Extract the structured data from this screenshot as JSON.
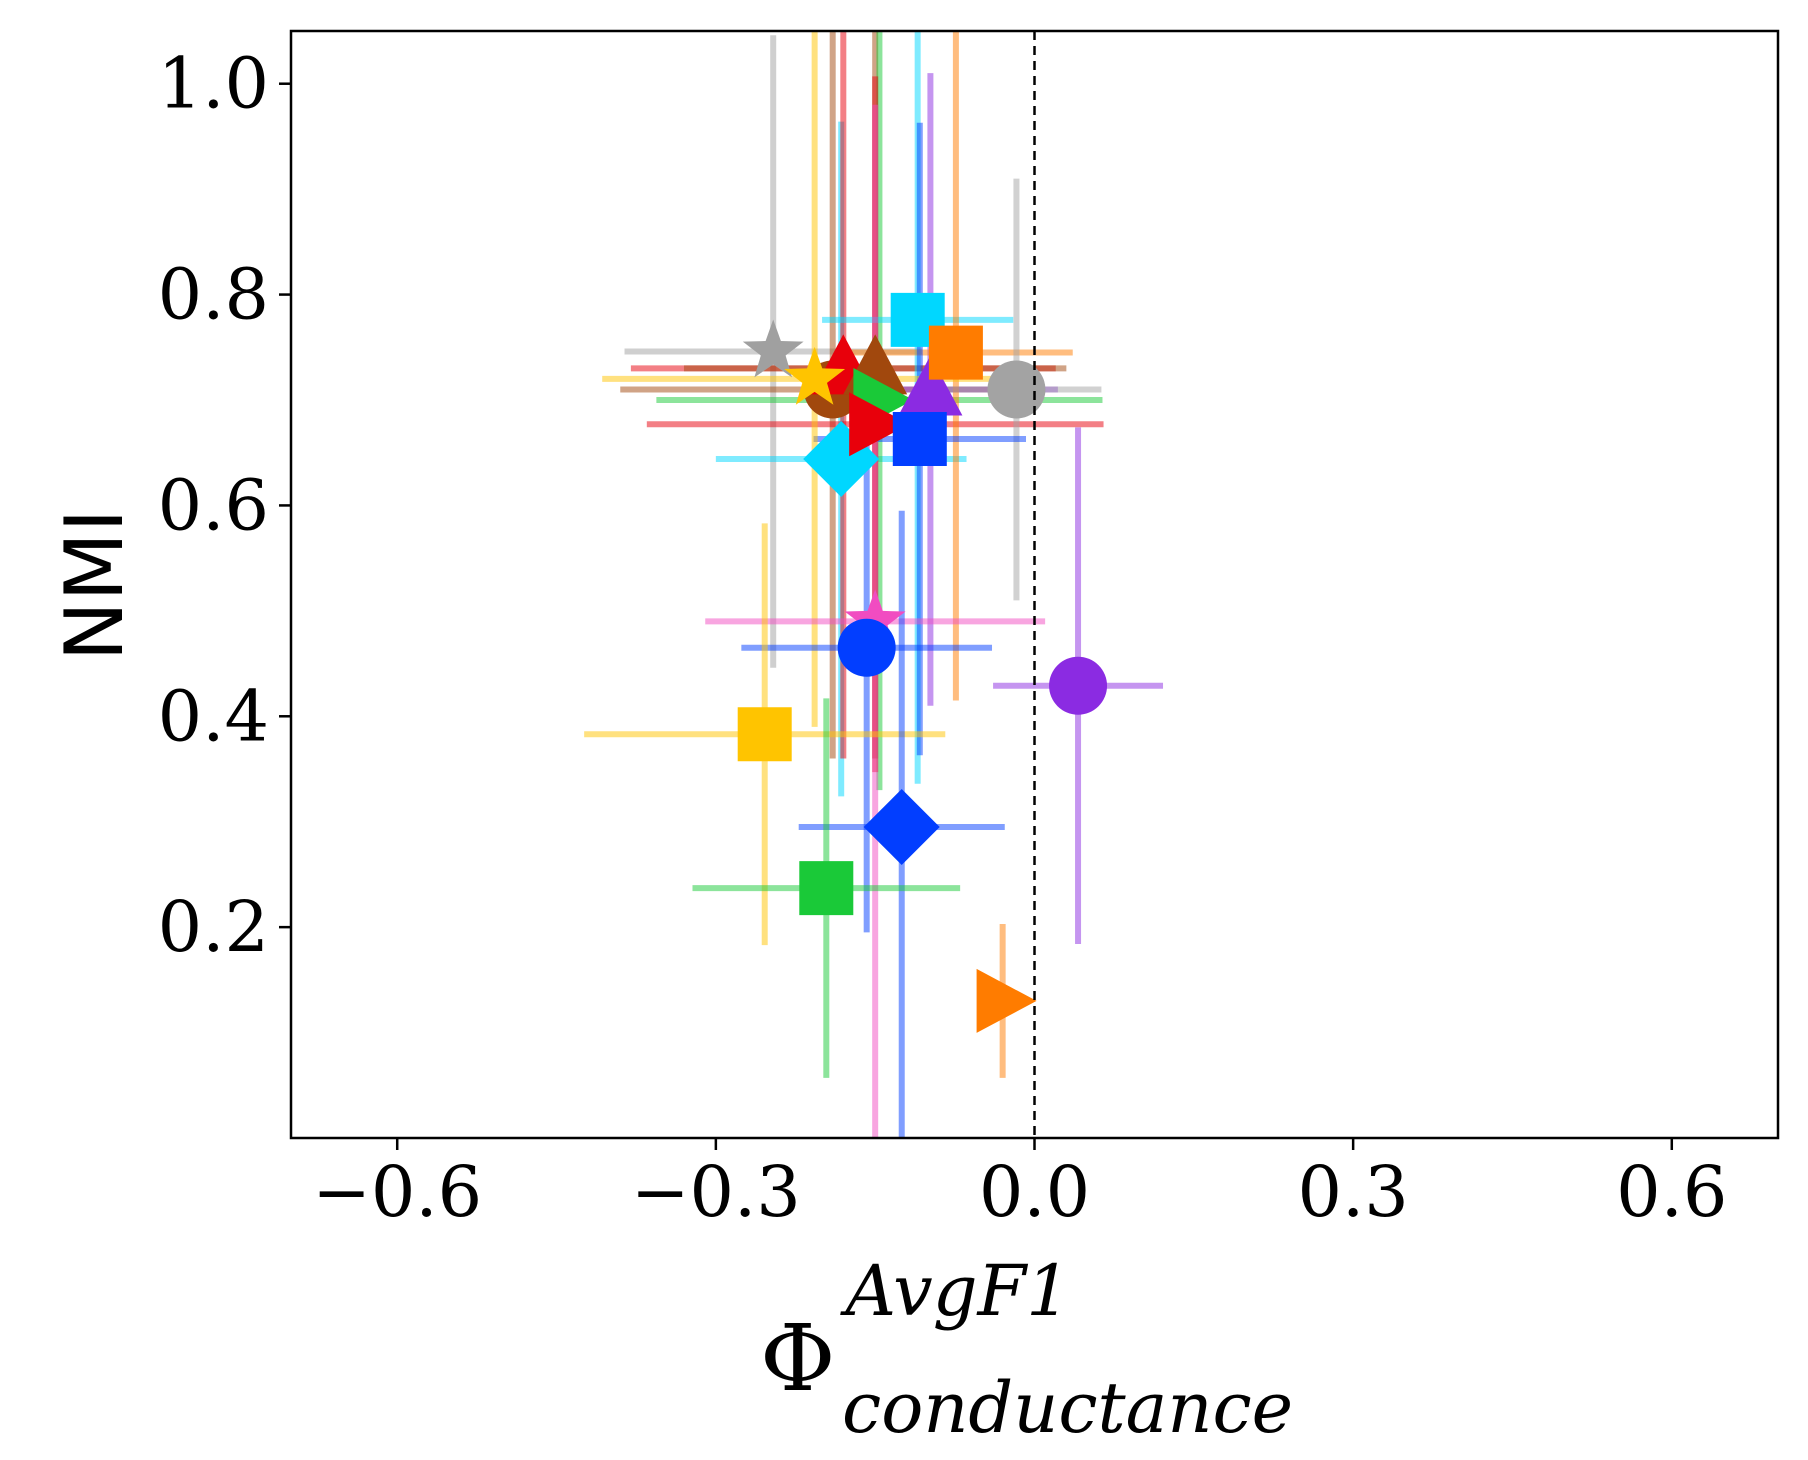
{
  "chart_data": {
    "type": "scatter",
    "xlabel": {
      "base": "Φ",
      "sup": "AvgF1",
      "sub": "conductance"
    },
    "ylabel": "NMI",
    "xlim": [
      -0.7,
      0.7
    ],
    "ylim": [
      0,
      1.05
    ],
    "xticks": [
      {
        "value": -0.6,
        "label": "−0.6"
      },
      {
        "value": -0.3,
        "label": "−0.3"
      },
      {
        "value": 0,
        "label": "0.0"
      },
      {
        "value": 0.3,
        "label": "0.3"
      },
      {
        "value": 0.6,
        "label": "0.6"
      }
    ],
    "yticks": [
      {
        "value": 0.2,
        "label": "0.2"
      },
      {
        "value": 0.4,
        "label": "0.4"
      },
      {
        "value": 0.6,
        "label": "0.6"
      },
      {
        "value": 0.8,
        "label": "0.8"
      },
      {
        "value": 1.0,
        "label": "1.0"
      }
    ],
    "vline": 0,
    "points": [
      {
        "marker": "star",
        "color": "#a0a0a0",
        "x": -0.246,
        "y": 0.746,
        "xerr": 0.14,
        "yerr": 0.3
      },
      {
        "marker": "diamond",
        "color": "#00d7ff",
        "x": -0.182,
        "y": 0.644,
        "xerr": 0.118,
        "yerr": 0.32
      },
      {
        "marker": "circle",
        "color": "#a1480d",
        "x": -0.19,
        "y": 0.71,
        "xerr": 0.2,
        "yerr": 0.35
      },
      {
        "marker": "triangle-up",
        "color": "#e8000b",
        "x": -0.18,
        "y": 0.73,
        "xerr": 0.2,
        "yerr": 0.37
      },
      {
        "marker": "triangle-up",
        "color": "#a1480d",
        "x": -0.15,
        "y": 0.73,
        "xerr": 0.18,
        "yerr": 0.37
      },
      {
        "marker": "triangle-right",
        "color": "#1ac938",
        "x": -0.146,
        "y": 0.7,
        "xerr": 0.21,
        "yerr": 0.37
      },
      {
        "marker": "triangle-right",
        "color": "#e8000b",
        "x": -0.15,
        "y": 0.677,
        "xerr": 0.215,
        "yerr": 0.33
      },
      {
        "marker": "triangle-up",
        "color": "#8b2be2",
        "x": -0.098,
        "y": 0.71,
        "xerr": 0.12,
        "yerr": 0.3
      },
      {
        "marker": "square",
        "color": "#00d7ff",
        "x": -0.11,
        "y": 0.776,
        "xerr": 0.09,
        "yerr": 0.44
      },
      {
        "marker": "square",
        "color": "#ff7c00",
        "x": -0.074,
        "y": 0.745,
        "xerr": 0.11,
        "yerr": 0.33
      },
      {
        "marker": "circle",
        "color": "#a3a3a3",
        "x": -0.017,
        "y": 0.71,
        "xerr": 0.08,
        "yerr": 0.2
      },
      {
        "marker": "square",
        "color": "#023eff",
        "x": -0.108,
        "y": 0.663,
        "xerr": 0.1,
        "yerr": 0.3
      },
      {
        "marker": "star",
        "color": "#ffc400",
        "x": -0.207,
        "y": 0.72,
        "xerr": 0.2,
        "yerr": 0.33
      },
      {
        "marker": "star",
        "color": "#f14cc1",
        "x": -0.15,
        "y": 0.49,
        "xerr": 0.16,
        "yerr": 0.49
      },
      {
        "marker": "circle",
        "color": "#023eff",
        "x": -0.158,
        "y": 0.465,
        "xerr": 0.118,
        "yerr": 0.27
      },
      {
        "marker": "circle",
        "color": "#8b2be2",
        "x": 0.041,
        "y": 0.429,
        "xerr": 0.08,
        "yerr": 0.245
      },
      {
        "marker": "square",
        "color": "#ffc400",
        "x": -0.254,
        "y": 0.383,
        "xerr": 0.17,
        "yerr": 0.2
      },
      {
        "marker": "diamond",
        "color": "#023eff",
        "x": -0.125,
        "y": 0.295,
        "xerr": 0.097,
        "yerr": 0.3
      },
      {
        "marker": "square",
        "color": "#1ac938",
        "x": -0.196,
        "y": 0.237,
        "xerr": 0.126,
        "yerr": 0.18
      },
      {
        "marker": "triangle-right",
        "color": "#ff7c00",
        "x": -0.03,
        "y": 0.13,
        "xerr": 0.015,
        "yerr": 0.073
      }
    ]
  }
}
